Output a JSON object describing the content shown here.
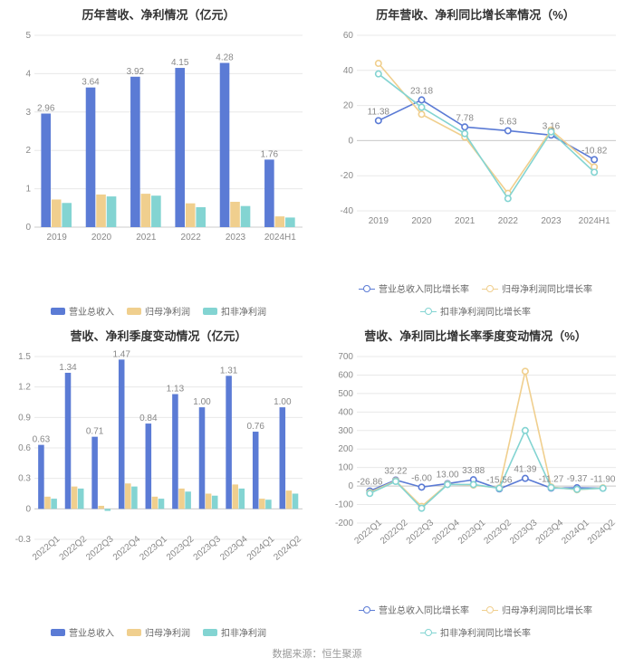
{
  "colors": {
    "series1": "#5b7bd5",
    "series2": "#f0cf8e",
    "series3": "#83d4d2",
    "grid": "#e8e8e8",
    "axis": "#cccccc",
    "text_muted": "#888888",
    "title": "#333333",
    "background": "#ffffff"
  },
  "fontsizes": {
    "title": 13,
    "axis": 10,
    "legend": 10,
    "bar_label": 10
  },
  "panel1": {
    "title": "历年营收、净利情况（亿元）",
    "type": "bar",
    "categories": [
      "2019",
      "2020",
      "2021",
      "2022",
      "2023",
      "2024H1"
    ],
    "series": [
      {
        "name": "营业总收入",
        "values": [
          2.96,
          3.64,
          3.92,
          4.15,
          4.28,
          1.76
        ],
        "color": "#5b7bd5"
      },
      {
        "name": "归母净利润",
        "values": [
          0.72,
          0.85,
          0.87,
          0.62,
          0.66,
          0.28
        ],
        "color": "#f0cf8e"
      },
      {
        "name": "扣非净利润",
        "values": [
          0.63,
          0.8,
          0.82,
          0.52,
          0.55,
          0.25
        ],
        "color": "#83d4d2"
      }
    ],
    "bar_labels": [
      "2.96",
      "3.64",
      "3.92",
      "4.15",
      "4.28",
      "1.76"
    ],
    "ylim": [
      0,
      5
    ],
    "ytick_step": 1,
    "bar_group_width": 0.7
  },
  "panel2": {
    "title": "历年营收、净利同比增长率情况（%）",
    "type": "line",
    "categories": [
      "2019",
      "2020",
      "2021",
      "2022",
      "2023",
      "2024H1"
    ],
    "series": [
      {
        "name": "营业总收入同比增长率",
        "values": [
          11.38,
          23.18,
          7.78,
          5.63,
          3.16,
          -10.82
        ],
        "color": "#5b7bd5"
      },
      {
        "name": "归母净利润同比增长率",
        "values": [
          44.0,
          15.0,
          2.0,
          -30.0,
          6.0,
          -15.0
        ],
        "color": "#f0cf8e"
      },
      {
        "name": "扣非净利润同比增长率",
        "values": [
          38.0,
          19.0,
          4.0,
          -33.0,
          5.0,
          -18.0
        ],
        "color": "#83d4d2"
      }
    ],
    "point_labels_series": 0,
    "point_labels": [
      "11.38",
      "23.18",
      "7.78",
      "5.63",
      "3.16",
      "-10.82"
    ],
    "ylim": [
      -40,
      60
    ],
    "ytick_step": 20
  },
  "panel3": {
    "title": "营收、净利季度变动情况（亿元）",
    "type": "bar",
    "categories": [
      "2022Q1",
      "2022Q2",
      "2022Q3",
      "2022Q4",
      "2023Q1",
      "2023Q2",
      "2023Q3",
      "2023Q4",
      "2024Q1",
      "2024Q2"
    ],
    "series": [
      {
        "name": "营业总收入",
        "values": [
          0.63,
          1.34,
          0.71,
          1.47,
          0.84,
          1.13,
          1.0,
          1.31,
          0.76,
          1.0
        ],
        "color": "#5b7bd5"
      },
      {
        "name": "归母净利润",
        "values": [
          0.12,
          0.22,
          0.03,
          0.25,
          0.12,
          0.2,
          0.15,
          0.24,
          0.1,
          0.18
        ],
        "color": "#f0cf8e"
      },
      {
        "name": "扣非净利润",
        "values": [
          0.1,
          0.2,
          -0.02,
          0.22,
          0.1,
          0.17,
          0.13,
          0.2,
          0.09,
          0.15
        ],
        "color": "#83d4d2"
      }
    ],
    "bar_labels": [
      "0.63",
      "1.34",
      "0.71",
      "1.47",
      "0.84",
      "1.13",
      "1.00",
      "1.31",
      "0.76",
      "1.00"
    ],
    "ylim": [
      -0.3,
      1.5
    ],
    "ytick_step": 0.3,
    "bar_group_width": 0.72,
    "rotate_x_labels": -40
  },
  "panel4": {
    "title": "营收、净利同比增长率季度变动情况（%）",
    "type": "line",
    "categories": [
      "2022Q1",
      "2022Q2",
      "2022Q3",
      "2022Q4",
      "2023Q1",
      "2023Q2",
      "2023Q3",
      "2023Q4",
      "2024Q1",
      "2024Q2"
    ],
    "series": [
      {
        "name": "营业总收入同比增长率",
        "values": [
          -26.86,
          32.22,
          -6.0,
          13.0,
          33.88,
          -15.56,
          41.39,
          -11.27,
          -9.37,
          -11.9
        ],
        "color": "#5b7bd5"
      },
      {
        "name": "归母净利润同比增长率",
        "values": [
          -35.0,
          28.0,
          -110.0,
          10.0,
          5.0,
          -10.0,
          620.0,
          -5.0,
          -20.0,
          -10.0
        ],
        "color": "#f0cf8e"
      },
      {
        "name": "扣非净利润同比增长率",
        "values": [
          -40.0,
          25.0,
          -120.0,
          8.0,
          8.0,
          -12.0,
          300.0,
          -8.0,
          -18.0,
          -12.0
        ],
        "color": "#83d4d2"
      }
    ],
    "point_labels_series": 0,
    "point_labels": [
      "-26.86",
      "32.22",
      "-6.00",
      "13.00",
      "33.88",
      "-15.56",
      "41.39",
      "-11.27",
      "-9.37",
      "-11.90"
    ],
    "ylim": [
      -200,
      700
    ],
    "ytick_step": 100,
    "rotate_x_labels": -40
  },
  "footer": "数据来源：恒生聚源"
}
